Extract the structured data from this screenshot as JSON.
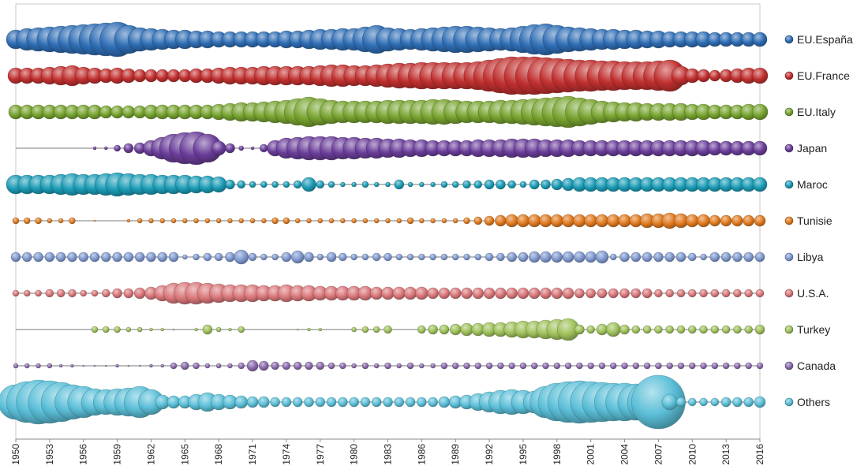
{
  "chart_data": {
    "type": "scatter",
    "title": "",
    "xlabel": "",
    "ylabel": "",
    "xlim": [
      1950,
      2016
    ],
    "grid": false,
    "legend_position": "right",
    "x_ticks": [
      1950,
      1953,
      1956,
      1959,
      1962,
      1965,
      1968,
      1971,
      1974,
      1977,
      1980,
      1983,
      1986,
      1989,
      1992,
      1995,
      1998,
      2001,
      2004,
      2007,
      2010,
      2013,
      2016
    ],
    "series": [
      {
        "name": "EU.España",
        "color": "#2e6db4",
        "values": [
          12,
          14,
          15,
          16,
          17,
          18,
          19,
          20,
          21,
          22,
          18,
          15,
          14,
          13,
          12,
          12,
          11,
          11,
          10,
          10,
          10,
          10,
          10,
          10,
          11,
          11,
          12,
          13,
          13,
          14,
          14,
          16,
          18,
          15,
          14,
          13,
          14,
          15,
          16,
          17,
          17,
          16,
          15,
          14,
          15,
          17,
          19,
          20,
          18,
          16,
          15,
          14,
          13,
          13,
          12,
          12,
          11,
          11,
          10,
          10,
          10,
          10,
          9,
          9,
          9,
          9,
          9
        ]
      },
      {
        "name": "EU.France",
        "color": "#c0302f",
        "values": [
          10,
          10,
          10,
          11,
          12,
          13,
          11,
          10,
          9,
          10,
          9,
          8,
          8,
          8,
          8,
          8,
          9,
          9,
          10,
          11,
          11,
          11,
          12,
          12,
          12,
          12,
          12,
          13,
          14,
          14,
          13,
          13,
          14,
          15,
          16,
          16,
          17,
          17,
          17,
          17,
          17,
          18,
          20,
          22,
          24,
          24,
          24,
          23,
          22,
          21,
          20,
          20,
          19,
          19,
          18,
          18,
          18,
          19,
          20,
          12,
          9,
          8,
          7,
          8,
          9,
          10,
          10
        ]
      },
      {
        "name": "EU.Italy",
        "color": "#77a32f",
        "values": [
          9,
          9,
          9,
          9,
          9,
          9,
          9,
          9,
          8,
          8,
          8,
          8,
          9,
          9,
          9,
          9,
          9,
          9,
          10,
          11,
          12,
          12,
          13,
          14,
          15,
          17,
          19,
          17,
          15,
          14,
          14,
          14,
          14,
          15,
          15,
          15,
          15,
          16,
          16,
          15,
          14,
          14,
          14,
          15,
          15,
          16,
          17,
          18,
          19,
          20,
          18,
          16,
          14,
          13,
          12,
          12,
          11,
          11,
          11,
          11,
          10,
          10,
          9,
          9,
          9,
          10,
          10
        ]
      },
      {
        "name": "Japan",
        "color": "#6a3d99",
        "values": [
          0,
          0,
          0,
          0,
          0,
          0,
          0,
          2,
          2,
          4,
          6,
          7,
          10,
          14,
          18,
          20,
          21,
          18,
          9,
          6,
          3,
          2,
          5,
          10,
          13,
          14,
          15,
          15,
          15,
          14,
          14,
          13,
          13,
          12,
          12,
          11,
          11,
          10,
          10,
          10,
          10,
          11,
          11,
          11,
          12,
          12,
          12,
          11,
          11,
          11,
          10,
          10,
          10,
          10,
          10,
          10,
          10,
          10,
          10,
          10,
          10,
          10,
          9,
          9,
          9,
          9,
          9
        ]
      },
      {
        "name": "Maroc",
        "color": "#1b9bb5",
        "values": [
          12,
          12,
          12,
          12,
          13,
          14,
          13,
          13,
          14,
          15,
          14,
          13,
          13,
          12,
          12,
          12,
          11,
          11,
          10,
          6,
          5,
          4,
          4,
          4,
          4,
          5,
          9,
          5,
          4,
          3,
          3,
          4,
          3,
          3,
          6,
          3,
          3,
          3,
          4,
          4,
          5,
          5,
          6,
          6,
          5,
          4,
          6,
          6,
          7,
          8,
          9,
          9,
          9,
          9,
          9,
          9,
          9,
          9,
          9,
          9,
          9,
          9,
          9,
          9,
          9,
          9,
          9
        ]
      },
      {
        "name": "Tunisie",
        "color": "#e07a1f",
        "values": [
          4,
          4,
          4,
          3,
          3,
          4,
          0,
          1,
          0,
          0,
          2,
          3,
          3,
          3,
          3,
          3,
          3,
          3,
          3,
          3,
          3,
          3,
          3,
          4,
          4,
          3,
          3,
          3,
          3,
          3,
          3,
          3,
          3,
          3,
          3,
          4,
          3,
          3,
          3,
          3,
          4,
          5,
          6,
          7,
          8,
          8,
          8,
          8,
          8,
          8,
          8,
          8,
          8,
          8,
          8,
          8,
          9,
          9,
          10,
          9,
          8,
          8,
          7,
          7,
          7,
          7,
          7
        ]
      },
      {
        "name": "Libya",
        "color": "#7f99cf",
        "values": [
          6,
          6,
          6,
          6,
          6,
          6,
          6,
          6,
          6,
          6,
          6,
          6,
          6,
          6,
          6,
          3,
          4,
          5,
          5,
          6,
          9,
          5,
          4,
          4,
          6,
          8,
          6,
          4,
          6,
          5,
          4,
          4,
          5,
          5,
          4,
          4,
          4,
          4,
          4,
          4,
          4,
          4,
          5,
          5,
          6,
          6,
          7,
          7,
          7,
          7,
          7,
          7,
          8,
          4,
          6,
          6,
          6,
          6,
          6,
          6,
          5,
          4,
          6,
          6,
          6,
          6,
          6
        ]
      },
      {
        "name": "U.S.A.",
        "color": "#d9777a",
        "values": [
          4,
          4,
          4,
          5,
          5,
          5,
          4,
          4,
          5,
          6,
          6,
          7,
          8,
          10,
          13,
          14,
          14,
          13,
          12,
          11,
          11,
          11,
          10,
          10,
          11,
          10,
          10,
          9,
          9,
          9,
          9,
          9,
          8,
          8,
          8,
          8,
          8,
          7,
          7,
          7,
          7,
          7,
          7,
          7,
          7,
          7,
          7,
          7,
          7,
          7,
          6,
          6,
          6,
          6,
          6,
          6,
          6,
          5,
          5,
          5,
          5,
          5,
          5,
          5,
          5,
          5,
          5
        ]
      },
      {
        "name": "Turkey",
        "color": "#9ec15a",
        "values": [
          0,
          0,
          0,
          0,
          0,
          0,
          0,
          4,
          4,
          4,
          3,
          3,
          2,
          2,
          1,
          0,
          2,
          6,
          3,
          2,
          4,
          0,
          0,
          0,
          0,
          1,
          2,
          2,
          0,
          0,
          3,
          4,
          4,
          5,
          0,
          0,
          5,
          6,
          6,
          7,
          8,
          8,
          9,
          9,
          10,
          11,
          11,
          12,
          13,
          14,
          6,
          5,
          7,
          9,
          6,
          5,
          5,
          5,
          5,
          5,
          5,
          5,
          5,
          5,
          5,
          5,
          6
        ]
      },
      {
        "name": "Canada",
        "color": "#8b6aac",
        "values": [
          3,
          3,
          3,
          3,
          2,
          2,
          1,
          1,
          1,
          2,
          1,
          1,
          2,
          2,
          4,
          5,
          4,
          3,
          3,
          3,
          4,
          7,
          6,
          5,
          5,
          5,
          5,
          5,
          4,
          4,
          3,
          4,
          3,
          4,
          3,
          4,
          3,
          3,
          4,
          4,
          4,
          4,
          4,
          4,
          4,
          4,
          4,
          4,
          4,
          4,
          4,
          4,
          4,
          4,
          4,
          4,
          4,
          4,
          4,
          4,
          4,
          4,
          4,
          4,
          4,
          4,
          4
        ]
      },
      {
        "name": "Others",
        "color": "#5bbfd8",
        "values": [
          22,
          26,
          28,
          27,
          25,
          22,
          20,
          17,
          16,
          17,
          18,
          20,
          16,
          9,
          8,
          8,
          10,
          12,
          10,
          9,
          8,
          7,
          7,
          6,
          6,
          6,
          6,
          6,
          6,
          6,
          6,
          6,
          6,
          6,
          6,
          6,
          6,
          6,
          7,
          8,
          9,
          11,
          13,
          15,
          16,
          15,
          14,
          20,
          24,
          26,
          27,
          26,
          25,
          24,
          24,
          23,
          25,
          34,
          10,
          6,
          5,
          5,
          5,
          6,
          6,
          6,
          7
        ]
      }
    ]
  }
}
